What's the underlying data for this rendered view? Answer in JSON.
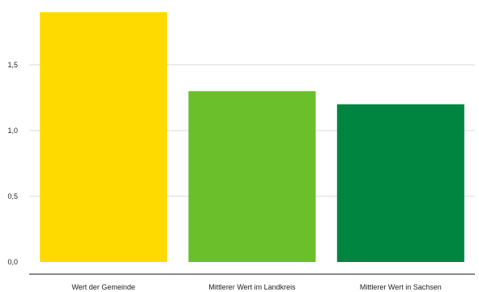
{
  "chart_data": {
    "type": "bar",
    "title": "",
    "xlabel": "",
    "ylabel": "",
    "categories": [
      "Wert der Gemeinde",
      "Mittlerer Wert im Landkreis",
      "Mittlerer Wert in Sachsen"
    ],
    "values": [
      1.9,
      1.3,
      1.2
    ],
    "colors": [
      "#FFDA00",
      "#6BBF2A",
      "#008540"
    ],
    "ylim": [
      0,
      1.95
    ],
    "yticks": [
      0,
      0.5,
      1.0,
      1.5
    ],
    "ytick_labels": [
      "0,0",
      "0,5",
      "1,0",
      "1,5"
    ],
    "grid": true,
    "legend": "none"
  }
}
